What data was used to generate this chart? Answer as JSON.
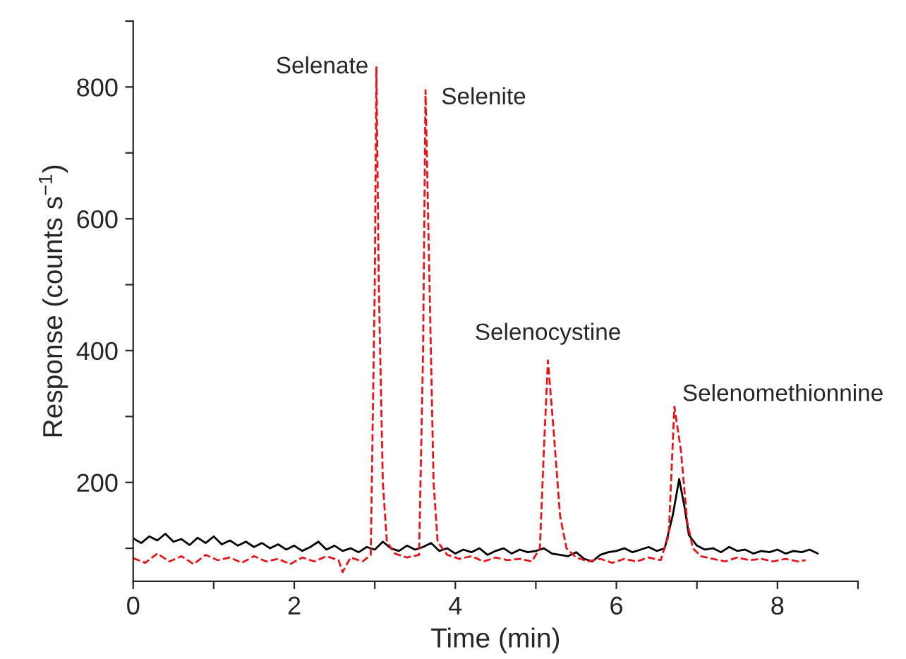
{
  "chart_data": {
    "type": "line",
    "xlabel": "Time (min)",
    "ylabel": "Response (counts s$^{−1}$)",
    "xlim": [
      0,
      9
    ],
    "xticks": [
      0,
      {
        "value": 1,
        "label": null
      },
      2,
      {
        "value": 3,
        "label": null
      },
      4,
      {
        "value": 5,
        "label": null
      },
      6,
      {
        "value": 7,
        "label": null
      },
      8,
      {
        "value": 9,
        "label": null
      }
    ],
    "ylim": [
      50,
      900
    ],
    "yticks": [
      {
        "value": 100,
        "label": null
      },
      200,
      {
        "value": 300,
        "label": null
      },
      400,
      {
        "value": 500,
        "label": null
      },
      600,
      {
        "value": 700,
        "label": null
      },
      800,
      {
        "value": 900,
        "label": null
      }
    ],
    "grid": false,
    "legend": false,
    "series": [
      {
        "color": "#000000",
        "line_style": "solid",
        "x": [
          0,
          0.1,
          0.2,
          0.3,
          0.4,
          0.5,
          0.6,
          0.7,
          0.8,
          0.9,
          1.0,
          1.1,
          1.2,
          1.3,
          1.4,
          1.5,
          1.6,
          1.7,
          1.8,
          1.9,
          2.0,
          2.1,
          2.2,
          2.3,
          2.4,
          2.5,
          2.6,
          2.7,
          2.8,
          2.9,
          3.0,
          3.1,
          3.2,
          3.3,
          3.4,
          3.5,
          3.6,
          3.7,
          3.8,
          3.9,
          4.0,
          4.1,
          4.2,
          4.3,
          4.4,
          4.5,
          4.6,
          4.7,
          4.8,
          4.9,
          5.0,
          5.1,
          5.2,
          5.3,
          5.4,
          5.5,
          5.6,
          5.7,
          5.8,
          5.9,
          6.0,
          6.1,
          6.2,
          6.3,
          6.4,
          6.5,
          6.6,
          6.7,
          6.78,
          6.85,
          6.9,
          7.0,
          7.1,
          7.2,
          7.3,
          7.4,
          7.5,
          7.6,
          7.7,
          7.8,
          7.9,
          8.0,
          8.1,
          8.2,
          8.3,
          8.4,
          8.5
        ],
        "values": [
          115,
          108,
          118,
          112,
          122,
          110,
          114,
          105,
          116,
          108,
          118,
          106,
          112,
          104,
          110,
          102,
          108,
          100,
          106,
          98,
          104,
          96,
          102,
          110,
          98,
          104,
          96,
          100,
          94,
          102,
          98,
          110,
          100,
          96,
          104,
          98,
          102,
          108,
          96,
          100,
          92,
          98,
          94,
          100,
          90,
          96,
          100,
          92,
          98,
          94,
          96,
          100,
          92,
          90,
          88,
          94,
          84,
          80,
          90,
          94,
          96,
          100,
          94,
          98,
          102,
          96,
          100,
          150,
          205,
          160,
          120,
          104,
          98,
          100,
          94,
          102,
          96,
          98,
          92,
          96,
          94,
          98,
          92,
          96,
          94,
          98,
          92
        ]
      },
      {
        "color": "#e8141c",
        "line_style": "dashed",
        "x": [
          0,
          0.15,
          0.3,
          0.45,
          0.6,
          0.75,
          0.9,
          1.05,
          1.2,
          1.35,
          1.5,
          1.65,
          1.8,
          1.95,
          2.1,
          2.25,
          2.4,
          2.55,
          2.6,
          2.7,
          2.85,
          2.95,
          3.0,
          3.02,
          3.05,
          3.1,
          3.15,
          3.25,
          3.4,
          3.55,
          3.6,
          3.63,
          3.68,
          3.73,
          3.78,
          3.9,
          4.05,
          4.2,
          4.35,
          4.5,
          4.65,
          4.8,
          4.95,
          5.05,
          5.1,
          5.15,
          5.22,
          5.3,
          5.38,
          5.5,
          5.65,
          5.8,
          5.95,
          6.1,
          6.25,
          6.4,
          6.55,
          6.65,
          6.72,
          6.8,
          6.88,
          6.95,
          7.05,
          7.2,
          7.35,
          7.5,
          7.65,
          7.8,
          7.95,
          8.1,
          8.25,
          8.35
        ],
        "values": [
          85,
          78,
          92,
          80,
          88,
          76,
          90,
          82,
          86,
          78,
          88,
          80,
          84,
          76,
          86,
          80,
          88,
          82,
          64,
          86,
          80,
          90,
          500,
          830,
          500,
          200,
          110,
          92,
          86,
          90,
          400,
          795,
          500,
          200,
          110,
          90,
          84,
          88,
          80,
          86,
          82,
          84,
          80,
          100,
          250,
          385,
          280,
          150,
          100,
          86,
          80,
          84,
          78,
          84,
          80,
          86,
          82,
          120,
          315,
          250,
          140,
          100,
          88,
          84,
          80,
          86,
          82,
          84,
          80,
          84,
          80,
          82
        ]
      }
    ],
    "annotations": [
      {
        "text": "Selenate",
        "x": 3.02,
        "y": 830
      },
      {
        "text": "Selenite",
        "x": 3.63,
        "y": 795
      },
      {
        "text": "Selenocystine",
        "x": 5.15,
        "y": 385
      },
      {
        "text": "Selenomethionnine",
        "x": 6.72,
        "y": 315
      }
    ]
  }
}
